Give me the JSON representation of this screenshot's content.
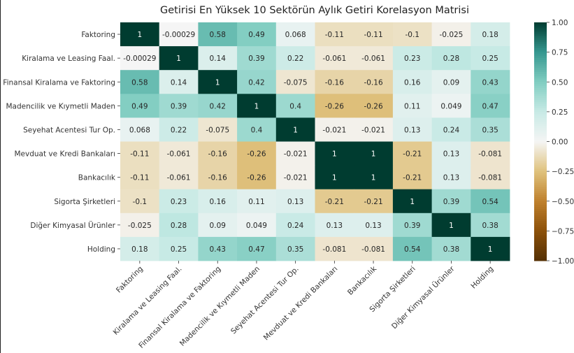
{
  "chart_data": {
    "type": "heatmap",
    "title": "Getirisi En Yüksek 10 Sektörün Aylık Getiri Korelasyon Matrisi",
    "labels": [
      "Faktoring",
      "Kiralama ve Leasing Faal.",
      "Finansal Kiralama ve Faktoring",
      "Madencilik ve Kıymetli Maden",
      "Seyehat Acentesi Tur Op.",
      "Mevduat ve Kredi Bankaları",
      "Bankacılık",
      "Sigorta Şirketleri",
      "Diğer Kimyasal Ürünler",
      "Holding"
    ],
    "values": [
      [
        1,
        -0.00029,
        0.58,
        0.49,
        0.068,
        -0.11,
        -0.11,
        -0.1,
        -0.025,
        0.18
      ],
      [
        -0.00029,
        1,
        0.14,
        0.39,
        0.22,
        -0.061,
        -0.061,
        0.23,
        0.28,
        0.25
      ],
      [
        0.58,
        0.14,
        1,
        0.42,
        -0.075,
        -0.16,
        -0.16,
        0.16,
        0.09,
        0.43
      ],
      [
        0.49,
        0.39,
        0.42,
        1,
        0.4,
        -0.26,
        -0.26,
        0.11,
        0.049,
        0.47
      ],
      [
        0.068,
        0.22,
        -0.075,
        0.4,
        1,
        -0.021,
        -0.021,
        0.13,
        0.24,
        0.35
      ],
      [
        -0.11,
        -0.061,
        -0.16,
        -0.26,
        -0.021,
        1,
        1,
        -0.21,
        0.13,
        -0.081
      ],
      [
        -0.11,
        -0.061,
        -0.16,
        -0.26,
        -0.021,
        1,
        1,
        -0.21,
        0.13,
        -0.081
      ],
      [
        -0.1,
        0.23,
        0.16,
        0.11,
        0.13,
        -0.21,
        -0.21,
        1,
        0.39,
        0.54
      ],
      [
        -0.025,
        0.28,
        0.09,
        0.049,
        0.24,
        0.13,
        0.13,
        0.39,
        1,
        0.38
      ],
      [
        0.18,
        0.25,
        0.43,
        0.47,
        0.35,
        -0.081,
        -0.081,
        0.54,
        0.38,
        1
      ]
    ],
    "value_labels": [
      [
        "1",
        "-0.00029",
        "0.58",
        "0.49",
        "0.068",
        "-0.11",
        "-0.11",
        "-0.1",
        "-0.025",
        "0.18"
      ],
      [
        "-0.00029",
        "1",
        "0.14",
        "0.39",
        "0.22",
        "-0.061",
        "-0.061",
        "0.23",
        "0.28",
        "0.25"
      ],
      [
        "0.58",
        "0.14",
        "1",
        "0.42",
        "-0.075",
        "-0.16",
        "-0.16",
        "0.16",
        "0.09",
        "0.43"
      ],
      [
        "0.49",
        "0.39",
        "0.42",
        "1",
        "0.4",
        "-0.26",
        "-0.26",
        "0.11",
        "0.049",
        "0.47"
      ],
      [
        "0.068",
        "0.22",
        "-0.075",
        "0.4",
        "1",
        "-0.021",
        "-0.021",
        "0.13",
        "0.24",
        "0.35"
      ],
      [
        "-0.11",
        "-0.061",
        "-0.16",
        "-0.26",
        "-0.021",
        "1",
        "1",
        "-0.21",
        "0.13",
        "-0.081"
      ],
      [
        "-0.11",
        "-0.061",
        "-0.16",
        "-0.26",
        "-0.021",
        "1",
        "1",
        "-0.21",
        "0.13",
        "-0.081"
      ],
      [
        "-0.1",
        "0.23",
        "0.16",
        "0.11",
        "0.13",
        "-0.21",
        "-0.21",
        "1",
        "0.39",
        "0.54"
      ],
      [
        "-0.025",
        "0.28",
        "0.09",
        "0.049",
        "0.24",
        "0.13",
        "0.13",
        "0.39",
        "1",
        "0.38"
      ],
      [
        "0.18",
        "0.25",
        "0.43",
        "0.47",
        "0.35",
        "-0.081",
        "-0.081",
        "0.54",
        "0.38",
        "1"
      ]
    ],
    "colormap": "BrBG",
    "vmin": -1.0,
    "vmax": 1.0,
    "colorbar_ticks": [
      1.0,
      0.75,
      0.5,
      0.25,
      0.0,
      -0.25,
      -0.5,
      -0.75,
      -1.0
    ],
    "colorbar_tick_labels": [
      "1.00",
      "0.75",
      "0.50",
      "0.25",
      "0.00",
      "−0.25",
      "−0.50",
      "−0.75",
      "−1.00"
    ]
  }
}
